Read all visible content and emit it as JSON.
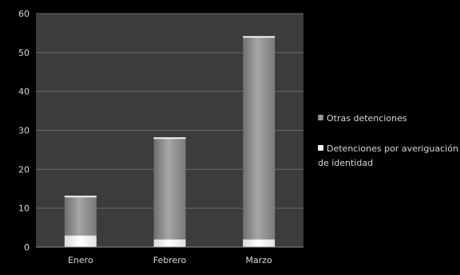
{
  "chart_data": {
    "type": "bar",
    "stacked": true,
    "title": "",
    "xlabel": "",
    "ylabel": "",
    "categories": [
      "Enero",
      "Febrero",
      "Marzo"
    ],
    "ylim": [
      0,
      60
    ],
    "yticks": [
      0,
      10,
      20,
      30,
      40,
      50,
      60
    ],
    "grid": true,
    "legend_position": "right",
    "series": [
      {
        "name": "Detenciones por averiguación de identidad",
        "values": [
          3,
          2,
          2
        ],
        "color": "#f2f2f2"
      },
      {
        "name": "Otras detenciones",
        "values": [
          10,
          26,
          52
        ],
        "color": "#8c8c8c"
      }
    ],
    "colors": {
      "background": "#000000",
      "plot_area": "#3c3c3c",
      "gridline": "#6a6a6a",
      "text": "#d8d8d8"
    }
  },
  "legend": {
    "items": [
      {
        "label_lines": [
          "Otras detenciones"
        ],
        "color": "#8c8c8c"
      },
      {
        "label_lines": [
          "Detenciones por averiguación",
          "de identidad"
        ],
        "color": "#f2f2f2"
      }
    ]
  }
}
